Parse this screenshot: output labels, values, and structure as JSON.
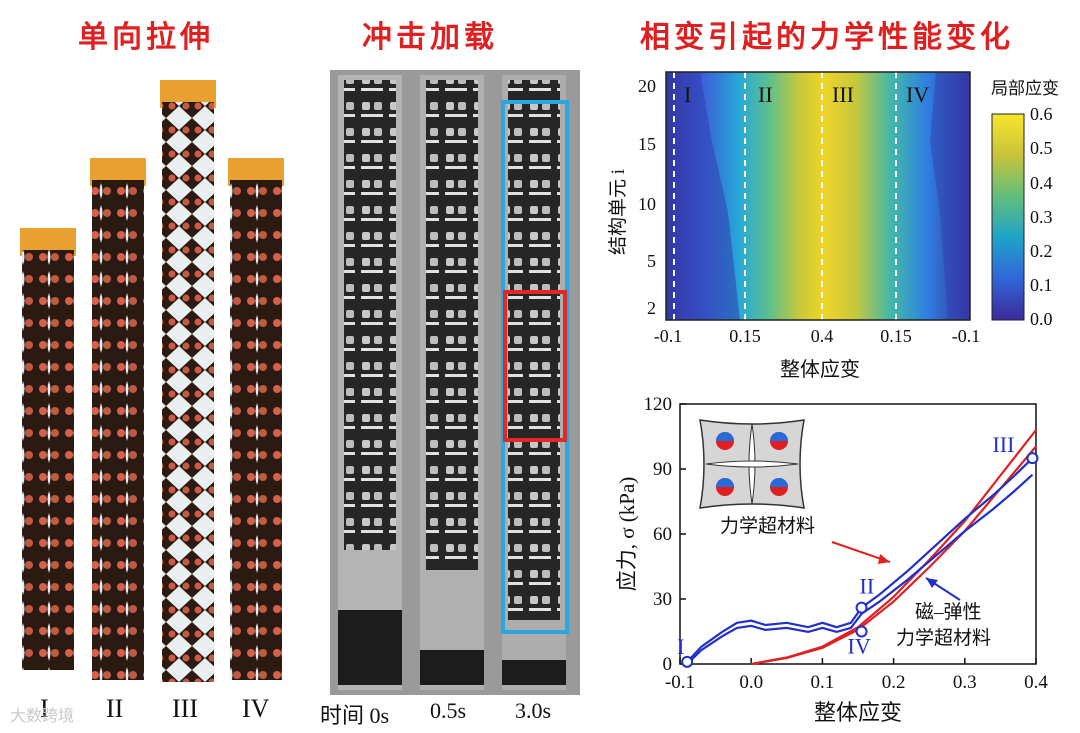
{
  "titles": {
    "tension": "单向拉伸",
    "impact": "冲击加载",
    "phase": "相变引起的力学性能变化"
  },
  "tension": {
    "stage_labels": [
      "I",
      "II",
      "III",
      "IV"
    ]
  },
  "impact": {
    "time_labels": [
      "时间 0s",
      "0.5s",
      "3.0s"
    ]
  },
  "watermark": "大数跨境",
  "colors": {
    "title": "#e02020",
    "mech": "#e02020",
    "magneto": "#2030c8",
    "box_blue": "#2aa7e0",
    "box_red": "#e02828"
  },
  "heatmap": {
    "ylabel": "结构单元 i",
    "xlabel": "整体应变",
    "colorbar_title": "局部应变",
    "colorbar_ticks": [
      "0.0",
      "0.1",
      "0.2",
      "0.3",
      "0.4",
      "0.5",
      "0.6"
    ],
    "yticks": [
      "2",
      "5",
      "10",
      "15",
      "20"
    ],
    "xticks": [
      "-0.1",
      "0.15",
      "0.4",
      "0.15",
      "-0.1"
    ],
    "regions": [
      "I",
      "II",
      "III",
      "IV"
    ]
  },
  "chart_data": {
    "type": "line",
    "title": "",
    "xlabel": "整体应变",
    "ylabel": "应力, σ (kPa)",
    "xlim": [
      -0.1,
      0.4
    ],
    "ylim": [
      0,
      120
    ],
    "xticks": [
      -0.1,
      0.0,
      0.1,
      0.2,
      0.3,
      0.4
    ],
    "yticks": [
      0,
      30,
      60,
      90,
      120
    ],
    "series": [
      {
        "name": "力学超材料",
        "color": "#e02020",
        "x": [
          0.0,
          0.05,
          0.1,
          0.15,
          0.2,
          0.25,
          0.3,
          0.35,
          0.4
        ],
        "y": [
          0,
          3,
          8,
          17,
          31,
          48,
          66,
          87,
          108
        ]
      },
      {
        "name": "磁-弹性力学超材料",
        "color": "#2030c8",
        "x": [
          -0.09,
          -0.07,
          -0.04,
          -0.02,
          0.0,
          0.02,
          0.05,
          0.08,
          0.1,
          0.12,
          0.14,
          0.155,
          0.18,
          0.22,
          0.26,
          0.3,
          0.34,
          0.37,
          0.395
        ],
        "y": [
          1,
          8,
          15,
          19,
          20,
          18,
          19,
          17,
          19,
          17,
          19,
          26,
          32,
          43,
          55,
          67,
          78,
          87,
          95
        ]
      }
    ],
    "annotations": [
      {
        "text": "I",
        "x": -0.09,
        "y": 1
      },
      {
        "text": "II",
        "x": 0.155,
        "y": 26
      },
      {
        "text": "III",
        "x": 0.395,
        "y": 95
      },
      {
        "text": "IV",
        "x": 0.155,
        "y": 15
      }
    ],
    "labels": {
      "mech": "力学超材料",
      "magneto_line1": "磁–弹性",
      "magneto_line2": "力学超材料"
    }
  }
}
